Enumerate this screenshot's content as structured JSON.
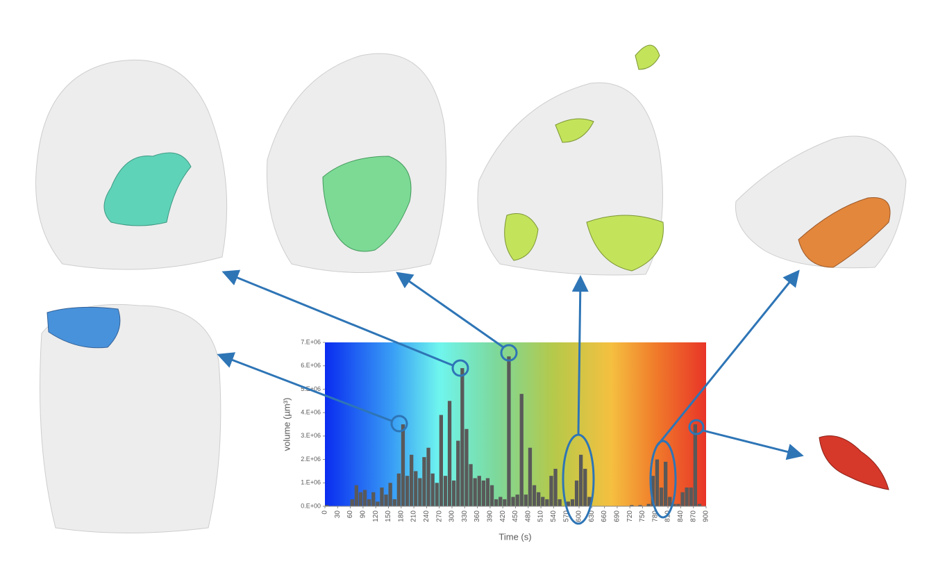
{
  "chart_data": {
    "type": "bar",
    "color": "#595959",
    "x_label": "Time (s)",
    "y_label": "volume (µm³)",
    "x": [
      0,
      10,
      20,
      30,
      40,
      50,
      60,
      70,
      80,
      90,
      100,
      110,
      120,
      130,
      140,
      150,
      160,
      170,
      180,
      190,
      200,
      210,
      220,
      230,
      240,
      250,
      260,
      270,
      280,
      290,
      300,
      310,
      320,
      330,
      340,
      350,
      360,
      370,
      380,
      390,
      400,
      410,
      420,
      430,
      440,
      450,
      460,
      470,
      480,
      490,
      500,
      510,
      520,
      530,
      540,
      550,
      560,
      570,
      580,
      590,
      600,
      610,
      620,
      630,
      640,
      650,
      660,
      670,
      680,
      690,
      700,
      710,
      720,
      730,
      740,
      750,
      760,
      770,
      780,
      790,
      800,
      810,
      820,
      830,
      840,
      850,
      860,
      870,
      880,
      890
    ],
    "values": [
      50000,
      0,
      0,
      0,
      0,
      0,
      300000,
      900000,
      600000,
      700000,
      300000,
      600000,
      200000,
      800000,
      500000,
      1000000,
      300000,
      1400000,
      3500000,
      1300000,
      2200000,
      1500000,
      1200000,
      2100000,
      2500000,
      1400000,
      1000000,
      3900000,
      1300000,
      4500000,
      1100000,
      2800000,
      5900000,
      3300000,
      1800000,
      1200000,
      1300000,
      1100000,
      1200000,
      900000,
      300000,
      400000,
      300000,
      6400000,
      400000,
      500000,
      4800000,
      500000,
      2500000,
      900000,
      600000,
      400000,
      300000,
      1300000,
      1600000,
      300000,
      0,
      200000,
      300000,
      1100000,
      2200000,
      1600000,
      400000,
      0,
      0,
      0,
      0,
      0,
      0,
      0,
      0,
      0,
      50000,
      0,
      50000,
      0,
      100000,
      1300000,
      2000000,
      800000,
      1900000,
      400000,
      100000,
      100000,
      600000,
      800000,
      800000,
      3500000,
      100000,
      0
    ],
    "bar_width": 10,
    "xlim": [
      0,
      900
    ],
    "xticks": [
      0,
      30,
      60,
      90,
      120,
      150,
      180,
      210,
      240,
      270,
      300,
      330,
      360,
      390,
      420,
      450,
      480,
      510,
      540,
      570,
      600,
      630,
      660,
      690,
      720,
      750,
      780,
      810,
      840,
      870,
      900
    ],
    "ylim": [
      0,
      7000000
    ],
    "yticks": [
      {
        "value": 0,
        "label": "0.E+00"
      },
      {
        "value": 1000000,
        "label": "1.E+06"
      },
      {
        "value": 2000000,
        "label": "2.E+06"
      },
      {
        "value": 3000000,
        "label": "3.E+06"
      },
      {
        "value": 4000000,
        "label": "4.E+06"
      },
      {
        "value": 5000000,
        "label": "5.E+06"
      },
      {
        "value": 6000000,
        "label": "6.E+06"
      },
      {
        "value": 7000000,
        "label": "7.E+06"
      }
    ]
  }
}
